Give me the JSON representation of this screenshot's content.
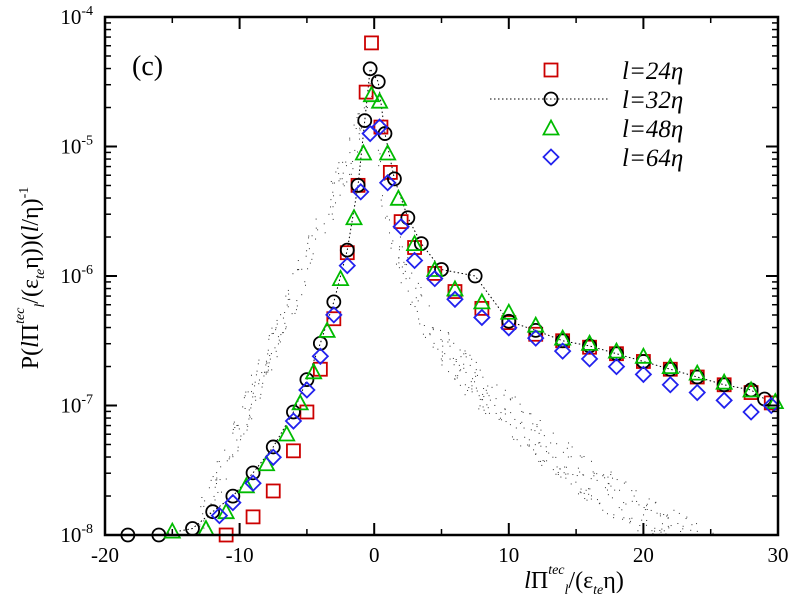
{
  "chart_data": {
    "type": "scatter",
    "panel_label": "(c)",
    "xlabel": "lΠtecl/(εteη)",
    "ylabel": "P(lΠtecl/(εteη))(l/η)-1",
    "xlim": [
      -20,
      30
    ],
    "ylim_log10": [
      -8,
      -4
    ],
    "yscale": "log",
    "x_ticks": [
      -20,
      -10,
      0,
      10,
      20,
      30
    ],
    "x_tick_labels": [
      "-20",
      "-10",
      "0",
      "10",
      "20",
      "30"
    ],
    "y_ticks": [
      {
        "base": "10",
        "exp": "-8"
      },
      {
        "base": "10",
        "exp": "-7"
      },
      {
        "base": "10",
        "exp": "-6"
      },
      {
        "base": "10",
        "exp": "-5"
      },
      {
        "base": "10",
        "exp": "-4"
      }
    ],
    "legend": {
      "position": "top-right",
      "entries": [
        {
          "label": "l=24η",
          "marker": "square",
          "color": "#cc0000",
          "line": false
        },
        {
          "label": "l=32η",
          "marker": "circle",
          "color": "#000000",
          "line": true
        },
        {
          "label": "l=48η",
          "marker": "triangle",
          "color": "#00bb00",
          "line": false
        },
        {
          "label": "l=64η",
          "marker": "diamond",
          "color": "#2222ee",
          "line": false
        }
      ]
    },
    "series": [
      {
        "name": "l=24η",
        "marker": "square",
        "color": "#cc0000",
        "x": [
          -11.0,
          -9.0,
          -7.5,
          -6.0,
          -5.0,
          -4.0,
          -3.0,
          -2.0,
          -1.2,
          -0.6,
          -0.2,
          0.5,
          1.2,
          2.0,
          3.0,
          4.5,
          6.0,
          8.0,
          10.0,
          12.0,
          14.0,
          16.0,
          18.0,
          20.0,
          22.0,
          24.0,
          26.0,
          28.0,
          29.5
        ],
        "log10y": [
          -8.0,
          -7.86,
          -7.66,
          -7.35,
          -7.05,
          -6.72,
          -6.33,
          -5.82,
          -5.3,
          -4.58,
          -4.2,
          -4.85,
          -5.2,
          -5.58,
          -5.78,
          -5.98,
          -6.12,
          -6.25,
          -6.36,
          -6.45,
          -6.5,
          -6.55,
          -6.6,
          -6.66,
          -6.72,
          -6.78,
          -6.84,
          -6.9,
          -6.98
        ]
      },
      {
        "name": "l=32η",
        "marker": "circle",
        "color": "#000000",
        "x": [
          -18.3,
          -16.0,
          -13.5,
          -12.0,
          -10.5,
          -9.0,
          -7.5,
          -6.0,
          -5.0,
          -4.0,
          -3.0,
          -2.0,
          -1.2,
          -0.7,
          -0.3,
          0.3,
          0.8,
          1.5,
          2.5,
          3.5,
          5.0,
          7.5,
          10.0,
          12.0,
          14.0,
          16.0,
          18.0,
          20.0,
          22.0,
          24.0,
          26.0,
          28.0,
          29.0
        ],
        "log10y": [
          -8.0,
          -8.0,
          -7.95,
          -7.82,
          -7.7,
          -7.52,
          -7.32,
          -7.05,
          -6.8,
          -6.52,
          -6.2,
          -5.8,
          -5.3,
          -4.8,
          -4.4,
          -4.5,
          -4.9,
          -5.25,
          -5.55,
          -5.75,
          -5.95,
          -6.0,
          -6.35,
          -6.42,
          -6.5,
          -6.54,
          -6.6,
          -6.66,
          -6.72,
          -6.78,
          -6.84,
          -6.88,
          -6.95
        ]
      },
      {
        "name": "l=48η",
        "marker": "triangle",
        "color": "#00bb00",
        "x": [
          -15.0,
          -12.5,
          -11.0,
          -9.5,
          -8.0,
          -6.5,
          -5.5,
          -4.5,
          -3.5,
          -2.5,
          -1.5,
          -0.8,
          -0.2,
          0.4,
          1.0,
          1.8,
          3.0,
          4.5,
          6.0,
          8.0,
          10.0,
          12.0,
          14.0,
          16.0,
          18.0,
          20.0,
          22.0,
          24.0,
          26.0,
          28.0,
          29.8
        ],
        "log10y": [
          -7.97,
          -7.95,
          -7.82,
          -7.62,
          -7.45,
          -7.22,
          -6.98,
          -6.74,
          -6.42,
          -6.02,
          -5.55,
          -5.05,
          -4.6,
          -4.65,
          -5.05,
          -5.4,
          -5.75,
          -5.95,
          -6.1,
          -6.2,
          -6.28,
          -6.38,
          -6.48,
          -6.52,
          -6.58,
          -6.62,
          -6.7,
          -6.75,
          -6.82,
          -6.88,
          -6.97
        ]
      },
      {
        "name": "l=64η",
        "marker": "diamond",
        "color": "#2222ee",
        "x": [
          -11.5,
          -10.5,
          -9.0,
          -7.5,
          -6.0,
          -5.0,
          -4.0,
          -3.0,
          -2.0,
          -1.0,
          -0.3,
          0.4,
          1.0,
          2.0,
          3.0,
          4.5,
          6.0,
          8.0,
          10.0,
          12.0,
          14.0,
          16.0,
          18.0,
          20.0,
          22.0,
          24.0,
          26.0,
          28.0,
          29.5
        ],
        "log10y": [
          -7.85,
          -7.75,
          -7.6,
          -7.4,
          -7.12,
          -6.88,
          -6.62,
          -6.3,
          -5.92,
          -5.35,
          -4.9,
          -4.85,
          -5.28,
          -5.62,
          -5.88,
          -6.02,
          -6.18,
          -6.32,
          -6.4,
          -6.48,
          -6.58,
          -6.64,
          -6.7,
          -6.76,
          -6.84,
          -6.9,
          -6.96,
          -7.05,
          -7.0
        ]
      }
    ]
  }
}
